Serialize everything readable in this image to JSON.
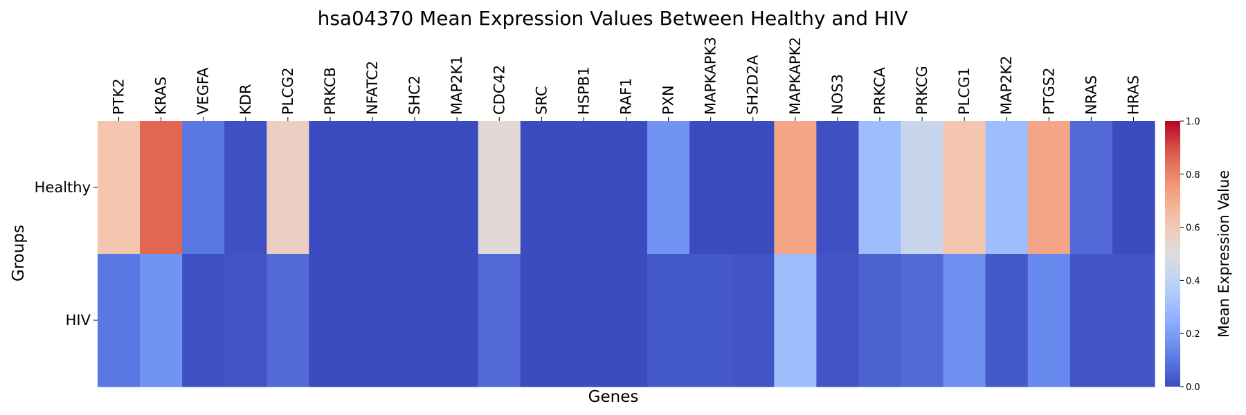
{
  "chart_data": {
    "type": "heatmap",
    "title": "hsa04370 Mean Expression Values Between Healthy and HIV",
    "xlabel": "Genes",
    "ylabel": "Groups",
    "colorbar_label": "Mean Expression Value",
    "colormap": "coolwarm",
    "vmin": 0.0,
    "vmax": 1.0,
    "colorbar_ticks": [
      "0.0",
      "0.2",
      "0.4",
      "0.6",
      "0.8",
      "1.0"
    ],
    "colorbar_tick_values": [
      0.0,
      0.2,
      0.4,
      0.6,
      0.8,
      1.0
    ],
    "columns": [
      "PTK2",
      "KRAS",
      "VEGFA",
      "KDR",
      "PLCG2",
      "PRKCB",
      "NFATC2",
      "SHC2",
      "MAP2K1",
      "CDC42",
      "SRC",
      "HSPB1",
      "RAF1",
      "PXN",
      "MAPKAPK3",
      "SH2D2A",
      "MAPKAPK2",
      "NOS3",
      "PRKCA",
      "PRKCG",
      "PLCG1",
      "MAP2K2",
      "PTGS2",
      "NRAS",
      "HRAS"
    ],
    "rows": [
      "Healthy",
      "HIV"
    ],
    "values": [
      [
        0.62,
        0.86,
        0.1,
        0.01,
        0.57,
        0.0,
        0.0,
        0.0,
        0.0,
        0.52,
        0.0,
        0.0,
        0.0,
        0.17,
        0.0,
        0.0,
        0.72,
        0.01,
        0.3,
        0.43,
        0.62,
        0.3,
        0.72,
        0.07,
        0.0
      ],
      [
        0.1,
        0.17,
        0.01,
        0.02,
        0.07,
        0.0,
        0.0,
        0.0,
        0.0,
        0.07,
        0.0,
        0.0,
        0.0,
        0.03,
        0.03,
        0.02,
        0.3,
        0.02,
        0.05,
        0.07,
        0.16,
        0.03,
        0.14,
        0.02,
        0.02
      ]
    ]
  }
}
